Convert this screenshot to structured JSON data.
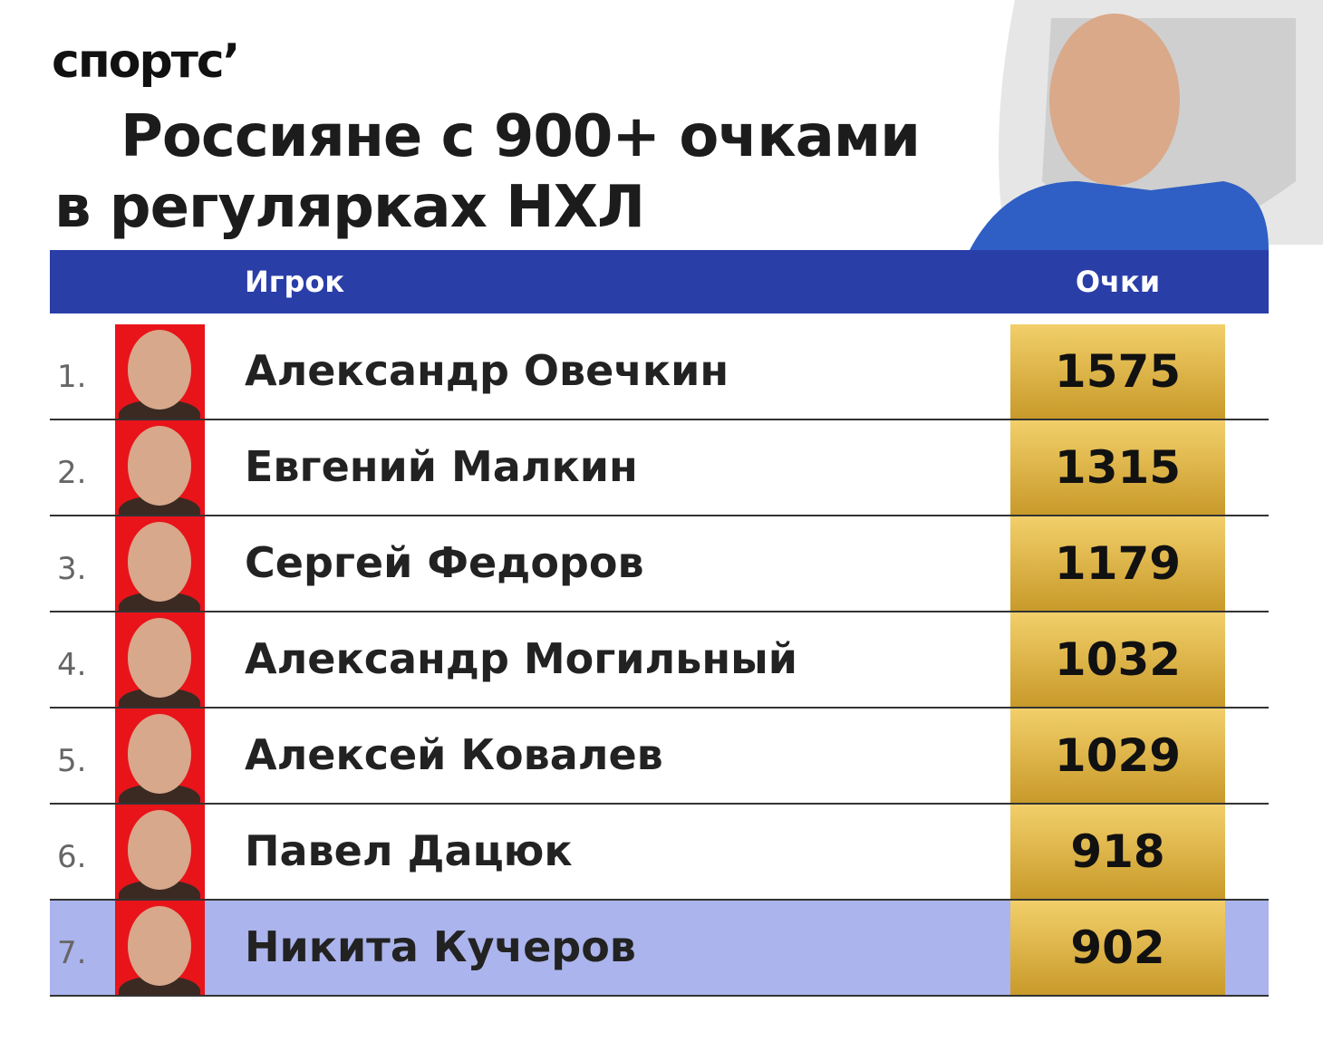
{
  "brand": "спортс’",
  "title": {
    "lines": [
      "Россияне с 900+ очками",
      "в регулярках НХЛ"
    ]
  },
  "table": {
    "header": [
      "Игрок",
      "Очки"
    ],
    "rows": [
      {
        "rank": "1.",
        "name": "Александр Овечкин",
        "points": 1575
      },
      {
        "rank": "2.",
        "name": "Евгений Малкин",
        "points": 1315
      },
      {
        "rank": "3.",
        "name": "Сергей Федоров",
        "points": 1179
      },
      {
        "rank": "4.",
        "name": "Александр Могильный",
        "points": 1032
      },
      {
        "rank": "5.",
        "name": "Алексей Ковалев",
        "points": 1029
      },
      {
        "rank": "6.",
        "name": "Павел Дацюк",
        "points": 918
      },
      {
        "rank": "7.",
        "name": "Никита Кучеров",
        "points": 902,
        "highlight": true
      }
    ]
  }
}
